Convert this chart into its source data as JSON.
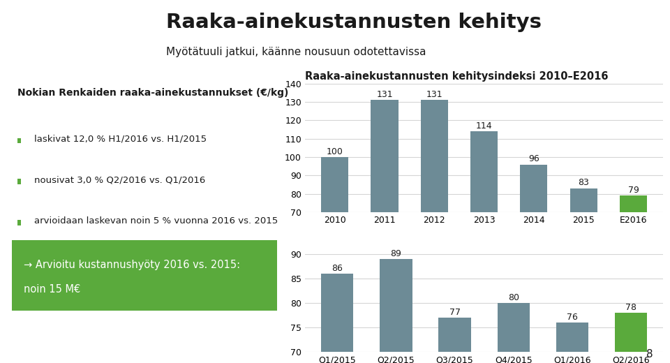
{
  "title": "Raaka-ainekustannusten kehitys",
  "subtitle": "Myötätuuli jatkui, käänne nousuun odotettavissa",
  "left_heading": "Nokian Renkaiden raaka-ainekustannukset (€/kg)",
  "bullets": [
    "laskivat 12,0 % H1/2016 vs. H1/2015",
    "nousivat 3,0 % Q2/2016 vs. Q1/2016",
    "arvioidaan laskevan noin 5 % vuonna 2016 vs. 2015"
  ],
  "cta_line1": "→ Arvioitu kustannushyöty 2016 vs. 2015:",
  "cta_line2": "noin 15 M€",
  "chart1_title": "Raaka-ainekustannusten kehitysindeksi 2010–E2016",
  "chart1_categories": [
    "2010",
    "2011",
    "2012",
    "2013",
    "2014",
    "2015",
    "E2016"
  ],
  "chart1_values": [
    100,
    131,
    131,
    114,
    96,
    83,
    79
  ],
  "chart1_colors": [
    "#6d8b96",
    "#6d8b96",
    "#6d8b96",
    "#6d8b96",
    "#6d8b96",
    "#6d8b96",
    "#5aaa3c"
  ],
  "chart1_ylim": [
    70,
    140
  ],
  "chart1_yticks": [
    70,
    80,
    90,
    100,
    110,
    120,
    130,
    140
  ],
  "chart2_categories": [
    "Q1/2015",
    "Q2/2015",
    "Q3/2015",
    "Q4/2015",
    "Q1/2016",
    "Q2/2016"
  ],
  "chart2_values": [
    86,
    89,
    77,
    80,
    76,
    78
  ],
  "chart2_colors": [
    "#6d8b96",
    "#6d8b96",
    "#6d8b96",
    "#6d8b96",
    "#6d8b96",
    "#5aaa3c"
  ],
  "chart2_ylim": [
    70,
    90
  ],
  "chart2_yticks": [
    70,
    75,
    80,
    85,
    90
  ],
  "nokian_green": "#5aaa3c",
  "logo_green": "#5aaa3c",
  "bullet_color": "#5aaa3c",
  "page_num": "8",
  "bar_width": 0.55,
  "grid_color": "#d5d5d5",
  "text_color": "#1a1a1a"
}
